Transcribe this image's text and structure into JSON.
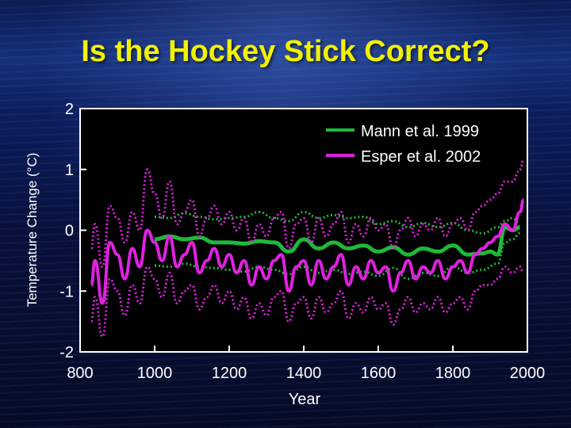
{
  "chart_data": {
    "type": "line",
    "title": "Is the Hockey Stick Correct?",
    "xlabel": "Year",
    "ylabel": "Temperature Change (°C)",
    "xlim": [
      800,
      2000
    ],
    "ylim": [
      -2,
      2
    ],
    "xticks": [
      "800",
      "1000",
      "1200",
      "1400",
      "1600",
      "1800",
      "2000"
    ],
    "yticks": [
      "2",
      "1",
      "0",
      "-1",
      "-2"
    ],
    "legend": "top-right",
    "grid": false,
    "colors": {
      "mann": "#1fb83a",
      "esper": "#e020e0",
      "title": "#f2f200"
    },
    "series": [
      {
        "name": "Mann et al. 1999",
        "style": "solid",
        "x": [
          1000,
          1040,
          1080,
          1120,
          1160,
          1200,
          1240,
          1280,
          1320,
          1360,
          1400,
          1440,
          1480,
          1520,
          1560,
          1600,
          1640,
          1680,
          1720,
          1760,
          1800,
          1840,
          1880,
          1900,
          1920,
          1940,
          1960,
          1980
        ],
        "values": [
          -0.15,
          -0.1,
          -0.15,
          -0.12,
          -0.2,
          -0.2,
          -0.22,
          -0.18,
          -0.2,
          -0.35,
          -0.15,
          -0.3,
          -0.2,
          -0.3,
          -0.25,
          -0.35,
          -0.28,
          -0.4,
          -0.3,
          -0.35,
          -0.25,
          -0.4,
          -0.38,
          -0.35,
          -0.4,
          0.05,
          0.0,
          0.05
        ]
      },
      {
        "name": "Mann et al. 1999 upper bound",
        "style": "dotted",
        "x": [
          1000,
          1040,
          1080,
          1120,
          1160,
          1200,
          1240,
          1280,
          1320,
          1360,
          1400,
          1440,
          1480,
          1520,
          1560,
          1600,
          1640,
          1680,
          1720,
          1760,
          1800,
          1840,
          1880,
          1920,
          1940,
          1960,
          1980
        ],
        "values": [
          0.22,
          0.2,
          0.28,
          0.22,
          0.18,
          0.2,
          0.22,
          0.3,
          0.2,
          0.15,
          0.3,
          0.2,
          0.25,
          0.2,
          0.22,
          0.1,
          0.15,
          0.05,
          0.12,
          0.05,
          0.12,
          0.0,
          -0.05,
          0.05,
          0.15,
          0.2,
          0.1
        ]
      },
      {
        "name": "Mann et al. 1999 lower bound",
        "style": "dotted",
        "x": [
          1000,
          1040,
          1080,
          1120,
          1160,
          1200,
          1240,
          1280,
          1320,
          1360,
          1400,
          1440,
          1480,
          1520,
          1560,
          1600,
          1640,
          1680,
          1720,
          1760,
          1800,
          1840,
          1880,
          1920,
          1940,
          1960,
          1980
        ],
        "values": [
          -0.58,
          -0.6,
          -0.55,
          -0.6,
          -0.62,
          -0.65,
          -0.68,
          -0.6,
          -0.65,
          -0.72,
          -0.6,
          -0.7,
          -0.65,
          -0.72,
          -0.68,
          -0.75,
          -0.62,
          -0.8,
          -0.7,
          -0.75,
          -0.6,
          -0.7,
          -0.65,
          -0.55,
          -0.2,
          -0.15,
          -0.05
        ]
      },
      {
        "name": "Esper et al. 2002",
        "style": "solid",
        "x": [
          830,
          840,
          860,
          880,
          900,
          920,
          940,
          960,
          980,
          1000,
          1020,
          1040,
          1060,
          1080,
          1100,
          1120,
          1140,
          1160,
          1180,
          1200,
          1220,
          1240,
          1260,
          1280,
          1300,
          1320,
          1340,
          1360,
          1380,
          1400,
          1420,
          1440,
          1460,
          1480,
          1500,
          1520,
          1540,
          1560,
          1580,
          1600,
          1620,
          1640,
          1660,
          1680,
          1700,
          1720,
          1740,
          1760,
          1780,
          1800,
          1820,
          1840,
          1860,
          1880,
          1900,
          1920,
          1940,
          1960,
          1980,
          1990
        ],
        "values": [
          -0.9,
          -0.5,
          -1.2,
          -0.2,
          -0.4,
          -0.8,
          -0.3,
          -0.6,
          0.0,
          -0.2,
          -0.5,
          -0.1,
          -0.6,
          -0.4,
          -0.2,
          -0.7,
          -0.5,
          -0.3,
          -0.6,
          -0.4,
          -0.7,
          -0.5,
          -0.9,
          -0.6,
          -0.8,
          -0.5,
          -0.4,
          -1.0,
          -0.6,
          -0.5,
          -0.9,
          -0.5,
          -0.8,
          -0.6,
          -0.4,
          -0.9,
          -0.6,
          -0.8,
          -0.5,
          -0.7,
          -0.6,
          -1.0,
          -0.7,
          -0.5,
          -0.8,
          -0.6,
          -0.7,
          -0.5,
          -0.8,
          -0.6,
          -0.5,
          -0.7,
          -0.4,
          -0.3,
          -0.2,
          -0.1,
          0.1,
          0.0,
          0.3,
          0.5
        ]
      },
      {
        "name": "Esper et al. 2002 upper bound",
        "style": "dotted",
        "x": [
          830,
          840,
          860,
          880,
          900,
          920,
          940,
          960,
          980,
          1000,
          1020,
          1040,
          1060,
          1080,
          1100,
          1120,
          1140,
          1160,
          1180,
          1200,
          1220,
          1240,
          1260,
          1280,
          1300,
          1320,
          1340,
          1360,
          1380,
          1400,
          1420,
          1440,
          1460,
          1480,
          1500,
          1520,
          1540,
          1560,
          1580,
          1600,
          1620,
          1640,
          1660,
          1680,
          1700,
          1720,
          1740,
          1760,
          1780,
          1800,
          1820,
          1840,
          1860,
          1880,
          1900,
          1920,
          1940,
          1960,
          1980,
          1990
        ],
        "values": [
          -0.3,
          0.1,
          -0.6,
          0.4,
          0.2,
          -0.2,
          0.3,
          0.0,
          1.0,
          0.6,
          0.2,
          0.8,
          0.1,
          0.3,
          0.5,
          -0.1,
          0.2,
          0.4,
          0.1,
          0.3,
          0.0,
          0.2,
          -0.2,
          0.1,
          -0.1,
          0.2,
          0.3,
          -0.3,
          0.1,
          0.2,
          -0.2,
          0.2,
          -0.1,
          0.1,
          0.3,
          -0.2,
          0.1,
          -0.1,
          0.2,
          0.0,
          0.1,
          -0.3,
          0.0,
          0.2,
          -0.1,
          0.1,
          0.0,
          0.2,
          -0.1,
          0.1,
          0.2,
          0.0,
          0.3,
          0.4,
          0.5,
          0.6,
          0.8,
          0.8,
          1.0,
          1.15
        ]
      },
      {
        "name": "Esper et al. 2002 lower bound",
        "style": "dotted",
        "x": [
          830,
          840,
          860,
          880,
          900,
          920,
          940,
          960,
          980,
          1000,
          1020,
          1040,
          1060,
          1080,
          1100,
          1120,
          1140,
          1160,
          1180,
          1200,
          1220,
          1240,
          1260,
          1280,
          1300,
          1320,
          1340,
          1360,
          1380,
          1400,
          1420,
          1440,
          1460,
          1480,
          1500,
          1520,
          1540,
          1560,
          1580,
          1600,
          1620,
          1640,
          1660,
          1680,
          1700,
          1720,
          1740,
          1760,
          1780,
          1800,
          1820,
          1840,
          1860,
          1880,
          1900,
          1920,
          1940,
          1960,
          1980,
          1990
        ],
        "values": [
          -1.5,
          -1.1,
          -1.75,
          -0.8,
          -1.0,
          -1.4,
          -0.9,
          -1.2,
          -0.6,
          -0.8,
          -1.1,
          -0.7,
          -1.2,
          -1.0,
          -0.9,
          -1.3,
          -1.1,
          -0.9,
          -1.2,
          -1.0,
          -1.3,
          -1.1,
          -1.45,
          -1.2,
          -1.4,
          -1.1,
          -1.0,
          -1.5,
          -1.2,
          -1.1,
          -1.45,
          -1.1,
          -1.35,
          -1.2,
          -1.0,
          -1.45,
          -1.2,
          -1.35,
          -1.1,
          -1.3,
          -1.2,
          -1.55,
          -1.3,
          -1.1,
          -1.35,
          -1.2,
          -1.3,
          -1.1,
          -1.35,
          -1.2,
          -1.1,
          -1.3,
          -1.0,
          -0.9,
          -0.9,
          -0.8,
          -0.6,
          -0.7,
          -0.6,
          -0.7
        ]
      }
    ]
  }
}
